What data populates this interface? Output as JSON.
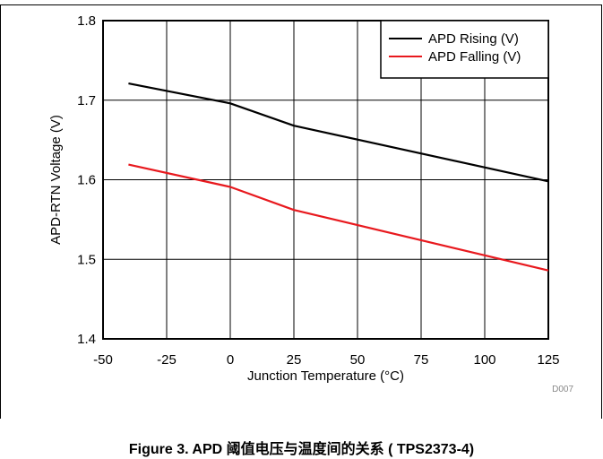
{
  "chart_data": {
    "type": "line",
    "xlabel": "Junction Temperature (°C)",
    "ylabel": "APD-RTN Voltage (V)",
    "xlim": [
      -50,
      125
    ],
    "ylim": [
      1.4,
      1.8
    ],
    "xticks": [
      "-50",
      "-25",
      "0",
      "25",
      "50",
      "75",
      "100",
      "125"
    ],
    "yticks": [
      "1.4",
      "1.5",
      "1.6",
      "1.7",
      "1.8"
    ],
    "grid": true,
    "legend_position": "top-right",
    "code": "D007",
    "series": [
      {
        "name": "APD Rising (V)",
        "color": "#000000",
        "x": [
          -40,
          0,
          25,
          125
        ],
        "y": [
          1.721,
          1.696,
          1.668,
          1.598
        ]
      },
      {
        "name": "APD Falling (V)",
        "color": "#e8191e",
        "x": [
          -40,
          0,
          25,
          125
        ],
        "y": [
          1.619,
          1.591,
          1.562,
          1.486
        ]
      }
    ]
  },
  "caption": "Figure 3. APD 阈值电压与温度间的关系 ( TPS2373-4)"
}
